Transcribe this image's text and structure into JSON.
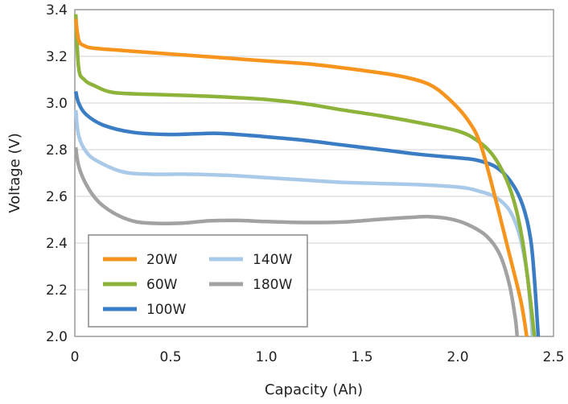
{
  "chart_data": {
    "type": "line",
    "title": "",
    "xlabel": "Capacity (Ah)",
    "ylabel": "Voltage (V)",
    "xlim": [
      0,
      2.5
    ],
    "ylim": [
      2.0,
      3.4
    ],
    "xticks": [
      0,
      0.5,
      1.0,
      1.5,
      2.0,
      2.5
    ],
    "xtick_labels": [
      "0",
      "0.5",
      "1.0",
      "1.5",
      "2.0",
      "2.5"
    ],
    "yticks": [
      2.0,
      2.2,
      2.4,
      2.6,
      2.8,
      3.0,
      3.2,
      3.4
    ],
    "ytick_labels": [
      "2.0",
      "2.2",
      "2.4",
      "2.6",
      "2.8",
      "3.0",
      "3.2",
      "3.4"
    ],
    "grid": "horizontal",
    "legend_position": "bottom-left",
    "series": [
      {
        "name": "20W",
        "color": "#f7941d",
        "points": [
          [
            0.005,
            3.36
          ],
          [
            0.02,
            3.27
          ],
          [
            0.05,
            3.245
          ],
          [
            0.1,
            3.235
          ],
          [
            0.25,
            3.225
          ],
          [
            0.5,
            3.21
          ],
          [
            0.75,
            3.195
          ],
          [
            1.0,
            3.18
          ],
          [
            1.25,
            3.165
          ],
          [
            1.5,
            3.14
          ],
          [
            1.7,
            3.115
          ],
          [
            1.85,
            3.08
          ],
          [
            1.95,
            3.02
          ],
          [
            2.05,
            2.93
          ],
          [
            2.12,
            2.82
          ],
          [
            2.2,
            2.58
          ],
          [
            2.27,
            2.35
          ],
          [
            2.33,
            2.15
          ],
          [
            2.36,
            2.0
          ]
        ]
      },
      {
        "name": "60W",
        "color": "#8db33a",
        "points": [
          [
            0.005,
            3.38
          ],
          [
            0.02,
            3.15
          ],
          [
            0.05,
            3.1
          ],
          [
            0.1,
            3.075
          ],
          [
            0.2,
            3.045
          ],
          [
            0.4,
            3.037
          ],
          [
            0.6,
            3.032
          ],
          [
            0.8,
            3.025
          ],
          [
            1.0,
            3.015
          ],
          [
            1.2,
            2.997
          ],
          [
            1.4,
            2.97
          ],
          [
            1.6,
            2.945
          ],
          [
            1.8,
            2.915
          ],
          [
            2.0,
            2.88
          ],
          [
            2.1,
            2.84
          ],
          [
            2.18,
            2.78
          ],
          [
            2.25,
            2.68
          ],
          [
            2.3,
            2.56
          ],
          [
            2.34,
            2.4
          ],
          [
            2.38,
            2.15
          ],
          [
            2.4,
            2.0
          ]
        ]
      },
      {
        "name": "100W",
        "color": "#3b7dc4",
        "points": [
          [
            0.005,
            3.05
          ],
          [
            0.02,
            3.0
          ],
          [
            0.06,
            2.95
          ],
          [
            0.15,
            2.905
          ],
          [
            0.3,
            2.875
          ],
          [
            0.5,
            2.865
          ],
          [
            0.75,
            2.87
          ],
          [
            1.0,
            2.855
          ],
          [
            1.2,
            2.84
          ],
          [
            1.4,
            2.82
          ],
          [
            1.6,
            2.8
          ],
          [
            1.8,
            2.78
          ],
          [
            2.0,
            2.765
          ],
          [
            2.1,
            2.755
          ],
          [
            2.2,
            2.725
          ],
          [
            2.28,
            2.66
          ],
          [
            2.34,
            2.56
          ],
          [
            2.38,
            2.42
          ],
          [
            2.4,
            2.25
          ],
          [
            2.42,
            2.0
          ]
        ]
      },
      {
        "name": "140W",
        "color": "#a9c9e8",
        "points": [
          [
            0.005,
            2.97
          ],
          [
            0.02,
            2.86
          ],
          [
            0.06,
            2.79
          ],
          [
            0.12,
            2.75
          ],
          [
            0.25,
            2.705
          ],
          [
            0.4,
            2.695
          ],
          [
            0.6,
            2.695
          ],
          [
            0.8,
            2.69
          ],
          [
            1.0,
            2.68
          ],
          [
            1.2,
            2.67
          ],
          [
            1.4,
            2.66
          ],
          [
            1.6,
            2.655
          ],
          [
            1.8,
            2.65
          ],
          [
            2.0,
            2.64
          ],
          [
            2.1,
            2.625
          ],
          [
            2.2,
            2.595
          ],
          [
            2.27,
            2.54
          ],
          [
            2.32,
            2.44
          ],
          [
            2.36,
            2.28
          ],
          [
            2.38,
            2.12
          ],
          [
            2.39,
            2.0
          ]
        ]
      },
      {
        "name": "180W",
        "color": "#a2a2a2",
        "points": [
          [
            0.005,
            2.81
          ],
          [
            0.02,
            2.73
          ],
          [
            0.06,
            2.65
          ],
          [
            0.12,
            2.58
          ],
          [
            0.2,
            2.53
          ],
          [
            0.3,
            2.495
          ],
          [
            0.4,
            2.485
          ],
          [
            0.55,
            2.485
          ],
          [
            0.7,
            2.495
          ],
          [
            0.85,
            2.497
          ],
          [
            1.0,
            2.492
          ],
          [
            1.2,
            2.488
          ],
          [
            1.4,
            2.49
          ],
          [
            1.6,
            2.502
          ],
          [
            1.75,
            2.51
          ],
          [
            1.85,
            2.513
          ],
          [
            1.95,
            2.505
          ],
          [
            2.05,
            2.48
          ],
          [
            2.15,
            2.43
          ],
          [
            2.22,
            2.35
          ],
          [
            2.27,
            2.22
          ],
          [
            2.3,
            2.08
          ],
          [
            2.31,
            2.0
          ]
        ]
      }
    ]
  }
}
